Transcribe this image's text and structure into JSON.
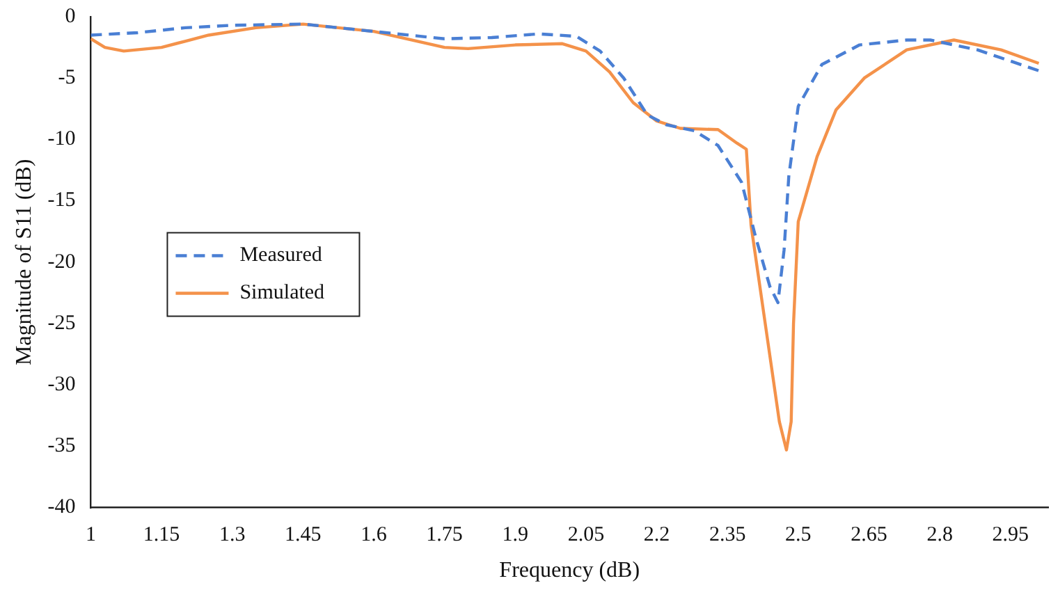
{
  "chart_data": {
    "type": "line",
    "xlabel": "Frequency (dB)",
    "ylabel": "Magnitude of S11 (dB)",
    "xlim": [
      1,
      3.03
    ],
    "xticks": [
      1,
      1.15,
      1.3,
      1.45,
      1.6,
      1.75,
      1.9,
      2.05,
      2.2,
      2.35,
      2.5,
      2.65,
      2.8,
      2.95
    ],
    "ylim": [
      -40,
      0
    ],
    "yticks": [
      -40,
      -35,
      -30,
      -25,
      -20,
      -15,
      -10,
      -5,
      0
    ],
    "grid": false,
    "legend": "left",
    "marker": "none",
    "series": [
      {
        "name": "Measured",
        "color": "#4a7fd4",
        "line_style": "dashed",
        "x": [
          1,
          1.1,
          1.2,
          1.3,
          1.45,
          1.6,
          1.75,
          1.85,
          1.95,
          2.03,
          2.08,
          2.13,
          2.18,
          2.22,
          2.28,
          2.33,
          2.38,
          2.41,
          2.44,
          2.457,
          2.47,
          2.48,
          2.5,
          2.55,
          2.63,
          2.73,
          2.78,
          2.88,
          3.01
        ],
        "values": [
          -1.5,
          -1.3,
          -0.9,
          -0.7,
          -0.6,
          -1.2,
          -1.8,
          -1.7,
          -1.4,
          -1.6,
          -2.8,
          -5,
          -8,
          -8.8,
          -9.3,
          -10.5,
          -13.5,
          -18,
          -22,
          -23.3,
          -19,
          -13,
          -7.3,
          -3.9,
          -2.3,
          -1.9,
          -1.9,
          -2.7,
          -4.4
        ]
      },
      {
        "name": "Simulated",
        "color": "#f4924a",
        "line_style": "solid",
        "x": [
          1,
          1.03,
          1.07,
          1.15,
          1.2,
          1.25,
          1.35,
          1.45,
          1.6,
          1.75,
          1.8,
          1.9,
          2.0,
          2.05,
          2.1,
          2.15,
          2.2,
          2.25,
          2.33,
          2.37,
          2.39,
          2.4,
          2.43,
          2.46,
          2.475,
          2.485,
          2.49,
          2.5,
          2.54,
          2.58,
          2.64,
          2.73,
          2.83,
          2.93,
          3.01
        ],
        "values": [
          -1.8,
          -2.5,
          -2.8,
          -2.5,
          -2.0,
          -1.5,
          -0.9,
          -0.6,
          -1.2,
          -2.5,
          -2.6,
          -2.3,
          -2.2,
          -2.8,
          -4.5,
          -7,
          -8.5,
          -9.1,
          -9.2,
          -10.3,
          -10.8,
          -17,
          -25,
          -33,
          -35.3,
          -33,
          -25,
          -16.7,
          -11.4,
          -7.6,
          -5,
          -2.7,
          -1.9,
          -2.7,
          -3.8
        ]
      }
    ]
  }
}
